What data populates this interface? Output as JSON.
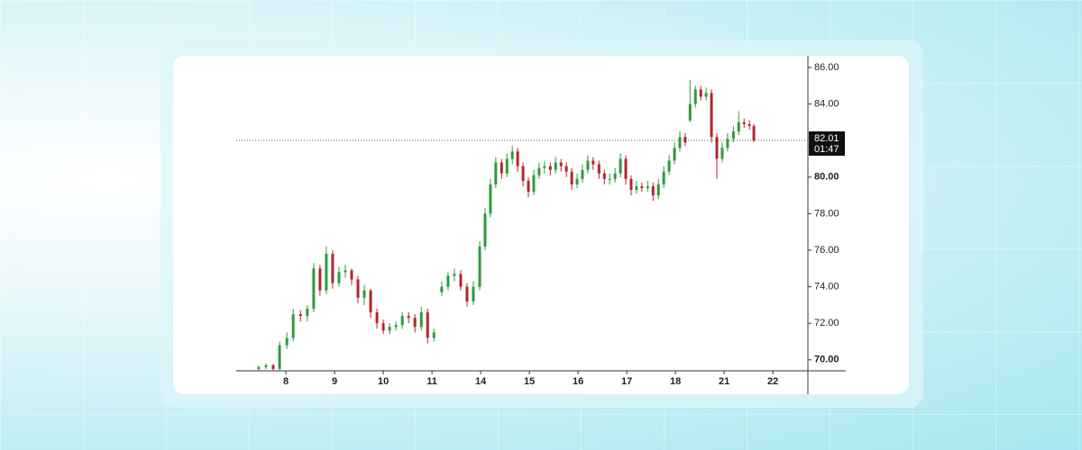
{
  "chart_data": {
    "type": "candlestick",
    "x": [
      -0.56,
      -0.41,
      -0.26,
      -0.13,
      0.02,
      0.15,
      0.3,
      0.44,
      0.57,
      0.7,
      0.83,
      0.96,
      1.09,
      1.22,
      1.35,
      1.48,
      1.61,
      1.74,
      1.87,
      2.0,
      2.13,
      2.26,
      2.39,
      2.52,
      2.65,
      2.78,
      2.91,
      3.04,
      3.2,
      3.33,
      3.46,
      3.59,
      3.72,
      3.85,
      3.98,
      4.09,
      4.2,
      4.31,
      4.43,
      4.54,
      4.65,
      4.76,
      4.87,
      4.98,
      5.09,
      5.2,
      5.31,
      5.43,
      5.54,
      5.65,
      5.76,
      5.87,
      5.98,
      6.09,
      6.2,
      6.31,
      6.43,
      6.54,
      6.65,
      6.76,
      6.87,
      6.98,
      7.09,
      7.2,
      7.31,
      7.43,
      7.54,
      7.65,
      7.76,
      7.87,
      7.98,
      8.09,
      8.2,
      8.3,
      8.41,
      8.52,
      8.63,
      8.74,
      8.85,
      8.96,
      9.07,
      9.19,
      9.3,
      9.41,
      9.52,
      9.61
    ],
    "open": [
      69.5,
      69.6,
      69.7,
      69.5,
      70.8,
      71.2,
      72.5,
      72.4,
      72.8,
      75.0,
      73.8,
      75.8,
      74.2,
      74.8,
      74.9,
      74.4,
      73.4,
      73.8,
      72.6,
      72.0,
      71.6,
      71.8,
      71.9,
      72.4,
      72.3,
      71.8,
      72.6,
      71.2,
      73.7,
      74.0,
      74.6,
      74.7,
      74.0,
      73.2,
      74.0,
      76.2,
      78.0,
      79.6,
      80.8,
      80.2,
      81.0,
      81.4,
      80.6,
      79.8,
      79.2,
      80.1,
      80.5,
      80.6,
      80.4,
      80.8,
      80.6,
      80.3,
      79.6,
      79.9,
      80.4,
      80.9,
      80.7,
      80.2,
      79.9,
      79.9,
      80.2,
      81.0,
      79.9,
      79.3,
      79.5,
      79.4,
      79.5,
      79.0,
      79.6,
      80.3,
      80.9,
      81.6,
      82.2,
      83.1,
      84.0,
      84.8,
      84.4,
      84.6,
      82.2,
      81.0,
      81.6,
      82.1,
      82.5,
      83.0,
      82.9,
      82.8
    ],
    "high": [
      69.7,
      69.8,
      69.8,
      71.0,
      71.5,
      72.8,
      72.7,
      73.0,
      75.3,
      75.2,
      76.2,
      76.0,
      75.1,
      75.2,
      75.0,
      74.6,
      74.1,
      73.9,
      72.8,
      72.2,
      72.0,
      72.1,
      72.6,
      72.6,
      72.5,
      72.9,
      72.8,
      71.7,
      74.3,
      74.8,
      75.0,
      74.9,
      74.2,
      74.3,
      76.5,
      78.3,
      79.9,
      81.1,
      81.0,
      81.3,
      81.7,
      81.6,
      80.8,
      80.0,
      80.4,
      80.8,
      80.9,
      80.8,
      81.1,
      81.0,
      80.8,
      80.5,
      80.2,
      80.7,
      81.2,
      81.1,
      80.9,
      80.4,
      80.2,
      80.5,
      81.3,
      81.2,
      80.1,
      79.8,
      79.7,
      79.8,
      79.7,
      79.9,
      80.6,
      81.2,
      81.9,
      82.5,
      82.4,
      85.3,
      85.0,
      85.0,
      84.9,
      84.8,
      82.4,
      81.9,
      82.4,
      82.8,
      83.6,
      83.2,
      83.1,
      82.9
    ],
    "low": [
      69.4,
      69.5,
      69.4,
      69.4,
      70.6,
      71.0,
      72.1,
      72.1,
      72.6,
      73.5,
      73.6,
      73.9,
      74.0,
      74.5,
      74.1,
      73.1,
      73.0,
      72.3,
      71.7,
      71.4,
      71.4,
      71.6,
      71.7,
      72.0,
      71.5,
      71.6,
      70.9,
      71.0,
      73.5,
      73.8,
      74.3,
      73.8,
      72.9,
      73.0,
      73.8,
      76.0,
      77.8,
      79.4,
      79.9,
      80.0,
      80.7,
      80.3,
      79.5,
      78.9,
      79.0,
      79.9,
      80.2,
      80.1,
      80.2,
      80.3,
      80.0,
      79.3,
      79.4,
      79.7,
      80.2,
      80.4,
      79.9,
      79.6,
      79.6,
      79.7,
      80.0,
      79.6,
      79.0,
      79.1,
      79.2,
      79.2,
      78.7,
      78.8,
      79.4,
      80.1,
      80.7,
      81.4,
      81.7,
      83.0,
      83.8,
      84.2,
      84.2,
      81.9,
      79.9,
      80.8,
      81.4,
      81.9,
      82.3,
      82.7,
      82.6,
      81.9
    ],
    "close": [
      69.6,
      69.7,
      69.5,
      70.8,
      71.2,
      72.5,
      72.4,
      72.8,
      75.0,
      73.8,
      75.8,
      74.2,
      74.8,
      74.9,
      74.4,
      73.4,
      73.8,
      72.6,
      72.0,
      71.6,
      71.8,
      71.9,
      72.4,
      72.3,
      71.8,
      72.6,
      71.2,
      71.5,
      74.0,
      74.6,
      74.7,
      74.0,
      73.2,
      74.0,
      76.2,
      78.0,
      79.6,
      80.8,
      80.2,
      81.0,
      81.4,
      80.6,
      79.8,
      79.2,
      80.1,
      80.5,
      80.6,
      80.4,
      80.8,
      80.6,
      80.3,
      79.6,
      79.9,
      80.4,
      80.9,
      80.7,
      80.2,
      79.9,
      79.9,
      80.2,
      81.0,
      79.9,
      79.3,
      79.5,
      79.4,
      79.5,
      79.0,
      79.6,
      80.3,
      80.9,
      81.6,
      82.2,
      81.9,
      84.0,
      84.8,
      84.4,
      84.6,
      82.2,
      81.0,
      81.6,
      82.1,
      82.5,
      83.0,
      82.9,
      82.8,
      82.01
    ],
    "up_color": "#2e9b3c",
    "down_color": "#b3262d",
    "xlim": [
      -1.02,
      10.72
    ],
    "xticks": [
      {
        "value": 0,
        "label": "8"
      },
      {
        "value": 1,
        "label": "9"
      },
      {
        "value": 2,
        "label": "10"
      },
      {
        "value": 3,
        "label": "11"
      },
      {
        "value": 4,
        "label": "14"
      },
      {
        "value": 5,
        "label": "15"
      },
      {
        "value": 6,
        "label": "16"
      },
      {
        "value": 7,
        "label": "17"
      },
      {
        "value": 8,
        "label": "18"
      },
      {
        "value": 9,
        "label": "21"
      },
      {
        "value": 10,
        "label": "22"
      }
    ],
    "ylim": [
      69.4,
      86.64
    ],
    "yticks": [
      {
        "value": 70,
        "label": "70.00"
      },
      {
        "value": 72,
        "label": "72.00"
      },
      {
        "value": 74,
        "label": "74.00"
      },
      {
        "value": 76,
        "label": "76.00"
      },
      {
        "value": 78,
        "label": "78.00"
      },
      {
        "value": 80,
        "label": "80.00"
      },
      {
        "value": 84,
        "label": "84.00"
      },
      {
        "value": 86,
        "label": "86.00"
      }
    ],
    "last_price": {
      "value": 82.01,
      "label": "82.01"
    },
    "countdown": "01:47"
  }
}
